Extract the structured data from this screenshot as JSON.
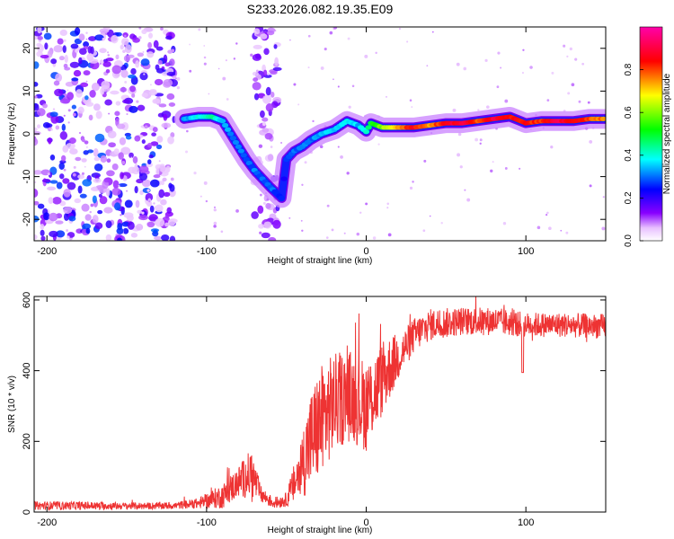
{
  "title": "S233.2026.082.19.35.E09",
  "chart_data": [
    {
      "type": "heatmap",
      "name": "spectrogram",
      "xlabel": "Height of straight line (km)",
      "ylabel": "Frequency (Hz)",
      "xlim": [
        -208,
        150
      ],
      "ylim": [
        -25,
        25
      ],
      "xticks": [
        -200,
        -100,
        0,
        100
      ],
      "yticks": [
        -20,
        -10,
        0,
        10,
        20
      ],
      "colorbar": {
        "label": "Normalized spectral amplitude",
        "range": [
          0,
          1
        ],
        "ticks": [
          0.0,
          0.2,
          0.4,
          0.6,
          0.8
        ],
        "tick_labels": [
          "0.0",
          "0.2",
          "0.4",
          "0.6",
          "0.8"
        ]
      },
      "signal_track": [
        {
          "x": -114,
          "y": 3.5,
          "a": 0.3
        },
        {
          "x": -105,
          "y": 4.0,
          "a": 0.4
        },
        {
          "x": -97,
          "y": 4.0,
          "a": 0.45
        },
        {
          "x": -90,
          "y": 3.0,
          "a": 0.35
        },
        {
          "x": -85,
          "y": 0.0,
          "a": 0.3
        },
        {
          "x": -80,
          "y": -3.0,
          "a": 0.3
        },
        {
          "x": -75,
          "y": -6.0,
          "a": 0.3
        },
        {
          "x": -70,
          "y": -8.5,
          "a": 0.3
        },
        {
          "x": -65,
          "y": -10.5,
          "a": 0.3
        },
        {
          "x": -60,
          "y": -12.5,
          "a": 0.3
        },
        {
          "x": -53,
          "y": -15.0,
          "a": 0.25
        },
        {
          "x": -50,
          "y": -6.0,
          "a": 0.25
        },
        {
          "x": -45,
          "y": -4.0,
          "a": 0.3
        },
        {
          "x": -40,
          "y": -3.0,
          "a": 0.3
        },
        {
          "x": -35,
          "y": -1.5,
          "a": 0.3
        },
        {
          "x": -28,
          "y": 0.0,
          "a": 0.35
        },
        {
          "x": -20,
          "y": 1.0,
          "a": 0.35
        },
        {
          "x": -12,
          "y": 3.0,
          "a": 0.4
        },
        {
          "x": -5,
          "y": 2.0,
          "a": 0.35
        },
        {
          "x": 0,
          "y": 0.5,
          "a": 0.4
        },
        {
          "x": 3,
          "y": 2.5,
          "a": 0.5
        },
        {
          "x": 10,
          "y": 1.5,
          "a": 0.6
        },
        {
          "x": 20,
          "y": 1.5,
          "a": 0.75
        },
        {
          "x": 30,
          "y": 1.5,
          "a": 0.85
        },
        {
          "x": 40,
          "y": 2.0,
          "a": 0.75
        },
        {
          "x": 50,
          "y": 2.5,
          "a": 0.85
        },
        {
          "x": 60,
          "y": 2.5,
          "a": 0.9
        },
        {
          "x": 70,
          "y": 3.0,
          "a": 0.8
        },
        {
          "x": 80,
          "y": 3.5,
          "a": 0.9
        },
        {
          "x": 90,
          "y": 4.0,
          "a": 0.85
        },
        {
          "x": 100,
          "y": 2.5,
          "a": 0.85
        },
        {
          "x": 110,
          "y": 3.0,
          "a": 0.8
        },
        {
          "x": 120,
          "y": 3.0,
          "a": 0.9
        },
        {
          "x": 130,
          "y": 3.0,
          "a": 0.85
        },
        {
          "x": 140,
          "y": 3.5,
          "a": 0.8
        },
        {
          "x": 150,
          "y": 3.5,
          "a": 0.75
        }
      ],
      "noise_regions": [
        {
          "x": [
            -208,
            -120
          ],
          "y": [
            -25,
            25
          ],
          "amplitude": [
            0.05,
            0.3
          ]
        },
        {
          "x": [
            -70,
            -55
          ],
          "y": [
            -25,
            25
          ],
          "amplitude": [
            0.05,
            0.2
          ]
        }
      ]
    },
    {
      "type": "line",
      "name": "snr",
      "xlabel": "Height of straight line (km)",
      "ylabel": "SNR (10 * v/v)",
      "xlim": [
        -208,
        150
      ],
      "ylim": [
        0,
        610
      ],
      "xticks": [
        -200,
        -100,
        0,
        100
      ],
      "yticks": [
        0,
        200,
        400,
        600
      ],
      "color": "#ee3333",
      "envelope": [
        {
          "x": -208,
          "y": 18,
          "noise": 12
        },
        {
          "x": -180,
          "y": 18,
          "noise": 12
        },
        {
          "x": -150,
          "y": 17,
          "noise": 10
        },
        {
          "x": -120,
          "y": 18,
          "noise": 10
        },
        {
          "x": -105,
          "y": 25,
          "noise": 15
        },
        {
          "x": -90,
          "y": 45,
          "noise": 35
        },
        {
          "x": -80,
          "y": 85,
          "noise": 45
        },
        {
          "x": -72,
          "y": 110,
          "noise": 70
        },
        {
          "x": -66,
          "y": 50,
          "noise": 25
        },
        {
          "x": -58,
          "y": 25,
          "noise": 15
        },
        {
          "x": -50,
          "y": 35,
          "noise": 20
        },
        {
          "x": -42,
          "y": 110,
          "noise": 80
        },
        {
          "x": -35,
          "y": 200,
          "noise": 140
        },
        {
          "x": -28,
          "y": 260,
          "noise": 160
        },
        {
          "x": -20,
          "y": 310,
          "noise": 140
        },
        {
          "x": -10,
          "y": 330,
          "noise": 130
        },
        {
          "x": 0,
          "y": 300,
          "noise": 130
        },
        {
          "x": 8,
          "y": 360,
          "noise": 110
        },
        {
          "x": 15,
          "y": 410,
          "noise": 90
        },
        {
          "x": 22,
          "y": 450,
          "noise": 60
        },
        {
          "x": 30,
          "y": 500,
          "noise": 50
        },
        {
          "x": 40,
          "y": 530,
          "noise": 45
        },
        {
          "x": 60,
          "y": 540,
          "noise": 40
        },
        {
          "x": 80,
          "y": 540,
          "noise": 40
        },
        {
          "x": 100,
          "y": 530,
          "noise": 35
        },
        {
          "x": 120,
          "y": 530,
          "noise": 35
        },
        {
          "x": 150,
          "y": 525,
          "noise": 35
        }
      ],
      "annotations": [
        {
          "x": 98,
          "y": 395,
          "note": "dip"
        }
      ]
    }
  ]
}
